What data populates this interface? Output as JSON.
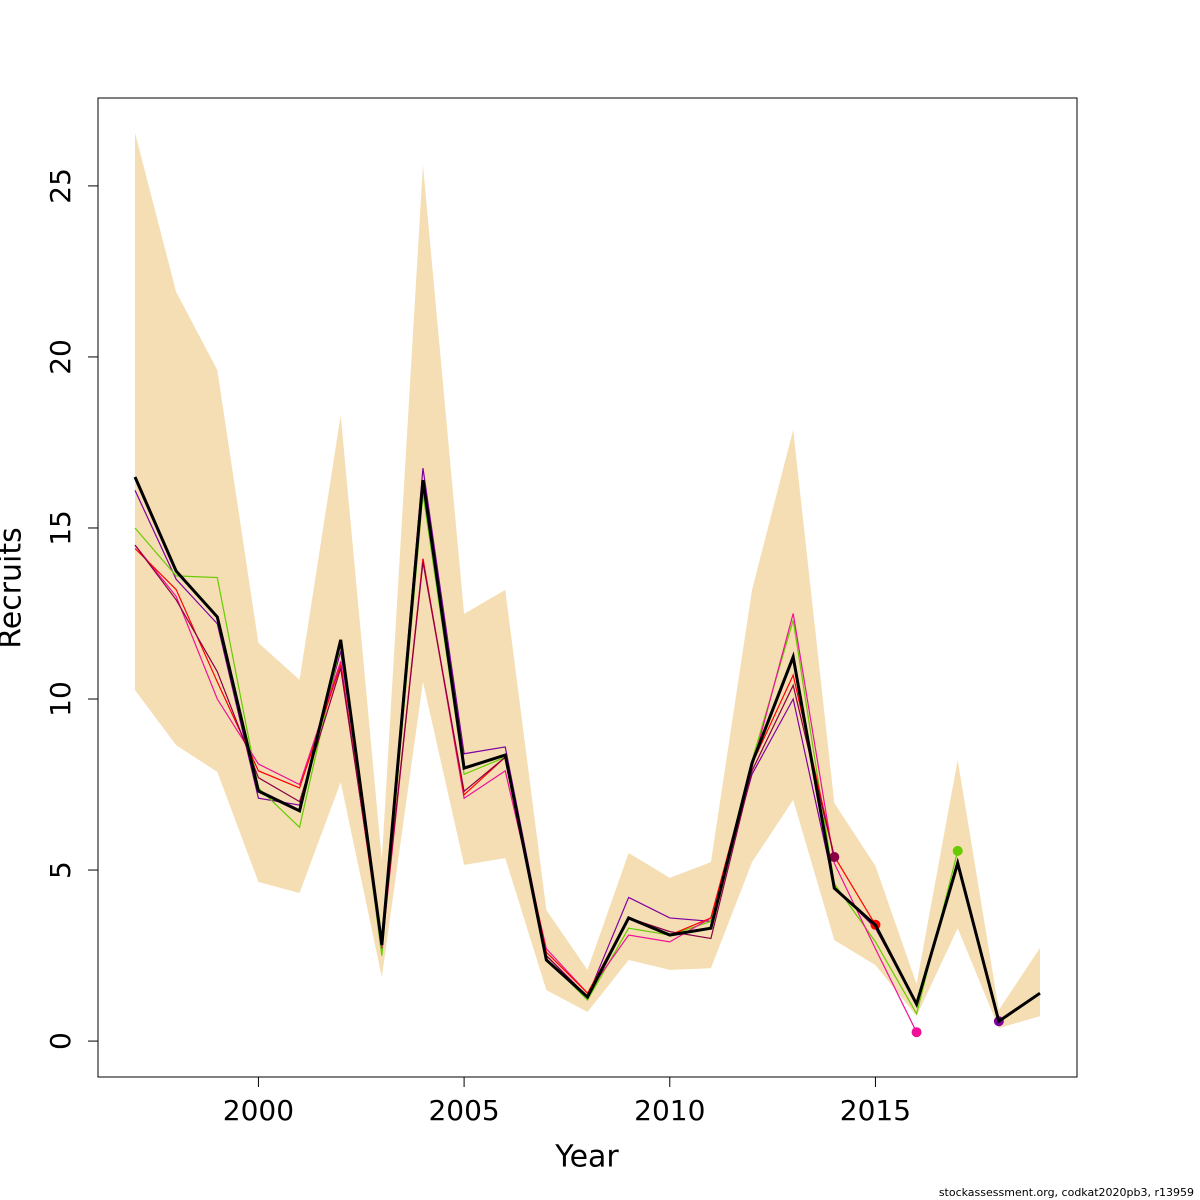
{
  "chart_data": {
    "type": "line",
    "x_label": "Year",
    "y_label": "Recruits",
    "footer": "stockassessment.org, codkat2020pb3, r13959",
    "x": [
      1997,
      1998,
      1999,
      2000,
      2001,
      2002,
      2003,
      2004,
      2005,
      2006,
      2007,
      2008,
      2009,
      2010,
      2011,
      2012,
      2013,
      2014,
      2015,
      2016,
      2017,
      2018,
      2019
    ],
    "xlim": [
      1996.1,
      2019.9
    ],
    "xticks": [
      2000,
      2005,
      2010,
      2015
    ],
    "ylim": [
      -1.05,
      27.57
    ],
    "yticks": [
      0,
      5,
      10,
      15,
      20,
      25
    ],
    "band": {
      "color": "#f5deb3",
      "upper": [
        26.55,
        21.9,
        19.62,
        11.64,
        10.56,
        18.3,
        5.29,
        25.61,
        12.49,
        13.19,
        3.83,
        2.08,
        5.5,
        4.77,
        5.23,
        13.19,
        17.87,
        6.96,
        5.12,
        1.67,
        8.22,
        0.91,
        2.72
      ],
      "lower": [
        10.26,
        8.65,
        7.87,
        4.65,
        4.33,
        7.57,
        1.87,
        10.5,
        5.15,
        5.35,
        1.49,
        0.85,
        2.37,
        2.08,
        2.13,
        5.23,
        7.05,
        2.95,
        2.22,
        0.73,
        3.3,
        0.38,
        0.73
      ]
    },
    "series": [
      {
        "color": "#8000a0",
        "values": [
          16.1,
          13.5,
          12.2,
          7.1,
          6.9,
          11.4,
          2.9,
          16.75,
          8.4,
          8.6,
          2.5,
          1.3,
          4.2,
          3.6,
          3.5,
          7.8,
          10.0,
          4.5,
          3.3,
          1.1,
          5.3,
          0.58,
          null
        ]
      },
      {
        "color": "#66cc00",
        "values": [
          15.0,
          13.6,
          13.55,
          7.4,
          6.25,
          11.6,
          2.5,
          16.0,
          7.8,
          8.3,
          2.4,
          1.2,
          3.3,
          3.1,
          3.5,
          8.2,
          12.3,
          4.6,
          2.9,
          0.8,
          5.56,
          null,
          null
        ]
      },
      {
        "color": "#ee1199",
        "values": [
          14.5,
          13.0,
          10.0,
          8.1,
          7.5,
          11.1,
          2.7,
          14.1,
          7.1,
          7.9,
          2.7,
          1.4,
          3.1,
          2.9,
          3.6,
          8.0,
          12.5,
          5.2,
          2.7,
          0.26,
          null,
          null,
          null
        ]
      },
      {
        "color": "#ff0000",
        "values": [
          14.4,
          13.2,
          10.5,
          7.9,
          7.4,
          11.0,
          2.8,
          14.1,
          7.2,
          8.3,
          2.6,
          1.4,
          3.6,
          3.1,
          3.6,
          8.1,
          10.7,
          5.4,
          3.4,
          null,
          null,
          null,
          null
        ]
      },
      {
        "color": "#8b0045",
        "values": [
          14.5,
          12.9,
          10.8,
          7.7,
          7.0,
          10.9,
          2.9,
          14.0,
          7.3,
          8.3,
          2.5,
          1.3,
          3.6,
          3.2,
          3.0,
          7.9,
          10.4,
          5.38,
          null,
          null,
          null,
          null,
          null
        ]
      },
      {
        "color": "#000000",
        "values": [
          16.49,
          13.74,
          12.4,
          7.31,
          6.73,
          11.73,
          2.81,
          16.4,
          7.98,
          8.36,
          2.37,
          1.29,
          3.6,
          3.1,
          3.3,
          8.13,
          11.23,
          4.47,
          3.39,
          1.08,
          5.2,
          0.58,
          1.4
        ]
      }
    ]
  }
}
